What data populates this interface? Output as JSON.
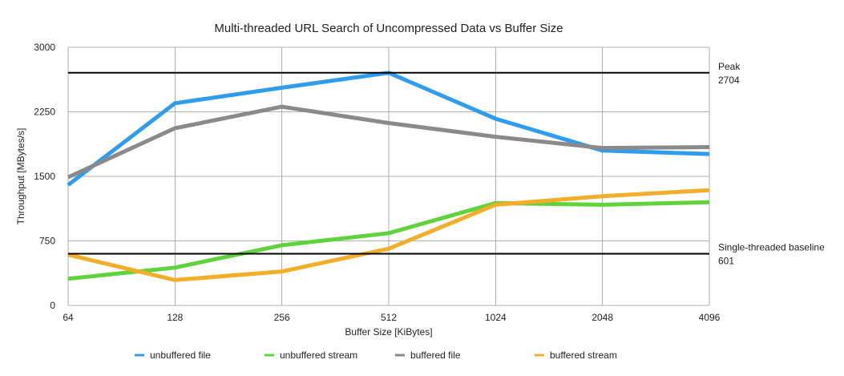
{
  "chart_data": {
    "type": "line",
    "title": "Multi-threaded URL Search of Uncompressed Data vs Buffer Size",
    "xlabel": "Buffer Size [KiBytes]",
    "ylabel": "Throughput [MBytes/s]",
    "x": [
      "64",
      "128",
      "256",
      "512",
      "1024",
      "2048",
      "4096"
    ],
    "ylim": [
      0,
      3000
    ],
    "yticks": [
      "0",
      "750",
      "1500",
      "2250",
      "3000"
    ],
    "grid": true,
    "legend_position": "bottom",
    "series": [
      {
        "name": "unbuffered file",
        "color": "#2f9cf0",
        "values": [
          1400,
          2350,
          2530,
          2704,
          2170,
          1800,
          1760
        ]
      },
      {
        "name": "unbuffered stream",
        "color": "#5fd33c",
        "values": [
          310,
          440,
          700,
          840,
          1190,
          1170,
          1200
        ]
      },
      {
        "name": "buffered file",
        "color": "#8a8a8a",
        "values": [
          1490,
          2060,
          2310,
          2120,
          1960,
          1830,
          1840
        ]
      },
      {
        "name": "buffered stream",
        "color": "#f2ae2a",
        "values": [
          590,
          295,
          395,
          660,
          1170,
          1270,
          1340
        ]
      }
    ],
    "reference_lines": [
      {
        "label": "Peak",
        "value_text": "2704",
        "value": 2704
      },
      {
        "label": "Single-threaded baseline",
        "value_text": "601",
        "value": 601
      }
    ]
  }
}
